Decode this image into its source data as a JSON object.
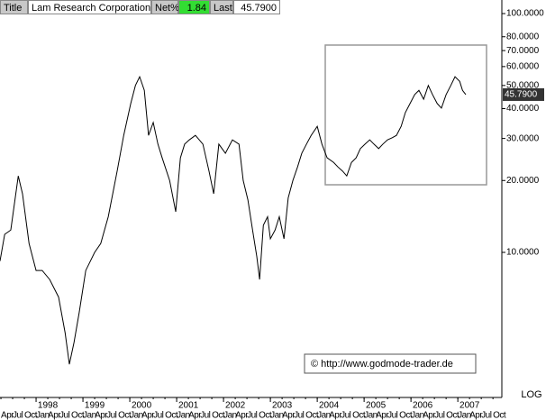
{
  "header": {
    "title_label": "Title",
    "name": "Lam Research Corporation",
    "net_label": "Net%",
    "net": 1.84,
    "last_label": "Last",
    "last": {
      "value": 45.79,
      "label": "45.7900"
    }
  },
  "chart_data": {
    "type": "line",
    "log_scale": true,
    "grid": false,
    "color": "#000000",
    "x": [
      1997.23,
      1997.33,
      1997.46,
      1997.62,
      1997.71,
      1997.85,
      1998.0,
      1998.13,
      1998.29,
      1998.48,
      1998.62,
      1998.71,
      1998.81,
      1998.92,
      1999.06,
      1999.25,
      1999.38,
      1999.54,
      1999.73,
      1999.87,
      2000.02,
      2000.12,
      2000.21,
      2000.31,
      2000.4,
      2000.5,
      2000.6,
      2000.69,
      2000.85,
      2000.98,
      2001.08,
      2001.17,
      2001.27,
      2001.4,
      2001.56,
      2001.69,
      2001.79,
      2001.9,
      2002.04,
      2002.19,
      2002.33,
      2002.42,
      2002.52,
      2002.62,
      2002.71,
      2002.77,
      2002.85,
      2002.94,
      2003.0,
      2003.1,
      2003.19,
      2003.29,
      2003.38,
      2003.48,
      2003.58,
      2003.67,
      2003.77,
      2003.87,
      2004.0,
      2004.1,
      2004.21,
      2004.35,
      2004.44,
      2004.54,
      2004.63,
      2004.73,
      2004.83,
      2004.92,
      2005.02,
      2005.12,
      2005.21,
      2005.31,
      2005.4,
      2005.5,
      2005.6,
      2005.69,
      2005.79,
      2005.88,
      2005.98,
      2006.08,
      2006.17,
      2006.27,
      2006.37,
      2006.46,
      2006.56,
      2006.65,
      2006.75,
      2006.85,
      2006.94,
      2007.04,
      2007.1,
      2007.17
    ],
    "values": [
      9.2,
      11.9,
      12.4,
      20.9,
      17.6,
      10.9,
      8.4,
      8.4,
      7.7,
      6.5,
      4.6,
      3.4,
      4.2,
      5.6,
      8.4,
      10.0,
      10.9,
      14.1,
      21.9,
      30.9,
      42.0,
      50.0,
      54.4,
      47.7,
      30.9,
      35.0,
      28.4,
      24.9,
      20.0,
      14.8,
      24.9,
      28.4,
      29.6,
      30.9,
      28.4,
      21.9,
      17.6,
      28.4,
      26.0,
      29.6,
      28.4,
      20.0,
      16.6,
      12.4,
      9.6,
      7.7,
      13.0,
      14.1,
      11.4,
      12.4,
      14.1,
      11.4,
      16.9,
      20.0,
      22.8,
      26.0,
      28.4,
      30.9,
      33.7,
      28.4,
      24.9,
      23.8,
      22.8,
      21.9,
      20.9,
      23.8,
      24.9,
      27.2,
      28.4,
      29.6,
      28.4,
      27.2,
      28.4,
      29.6,
      30.2,
      30.9,
      33.7,
      38.5,
      42.0,
      45.8,
      47.7,
      43.8,
      50.0,
      45.8,
      42.0,
      40.2,
      45.8,
      50.0,
      54.4,
      52.0,
      47.7,
      45.79
    ],
    "xlim": [
      1997.23,
      2007.92
    ],
    "xticks": [
      1998,
      1999,
      2000,
      2001,
      2002,
      2003,
      2004,
      2005,
      2006,
      2007
    ],
    "month_ticks": [
      {
        "value": 1997.25,
        "label": "Apr"
      },
      {
        "value": 1997.5,
        "label": "Jul"
      },
      {
        "value": 1997.75,
        "label": "Oct"
      },
      {
        "value": 1998,
        "label": "Jan"
      },
      {
        "value": 1998.25,
        "label": "Apr"
      },
      {
        "value": 1998.5,
        "label": "Jul"
      },
      {
        "value": 1998.75,
        "label": "Oct"
      },
      {
        "value": 1999,
        "label": "Jan"
      },
      {
        "value": 1999.25,
        "label": "Apr"
      },
      {
        "value": 1999.5,
        "label": "Jul"
      },
      {
        "value": 1999.75,
        "label": "Oct"
      },
      {
        "value": 2000,
        "label": "Jan"
      },
      {
        "value": 2000.25,
        "label": "Apr"
      },
      {
        "value": 2000.5,
        "label": "Jul"
      },
      {
        "value": 2000.75,
        "label": "Oct"
      },
      {
        "value": 2001,
        "label": "Jan"
      },
      {
        "value": 2001.25,
        "label": "Apr"
      },
      {
        "value": 2001.5,
        "label": "Jul"
      },
      {
        "value": 2001.75,
        "label": "Oct"
      },
      {
        "value": 2002,
        "label": "Jan"
      },
      {
        "value": 2002.25,
        "label": "Apr"
      },
      {
        "value": 2002.5,
        "label": "Jul"
      },
      {
        "value": 2002.75,
        "label": "Oct"
      },
      {
        "value": 2003,
        "label": "Jan"
      },
      {
        "value": 2003.25,
        "label": "Apr"
      },
      {
        "value": 2003.5,
        "label": "Jul"
      },
      {
        "value": 2003.75,
        "label": "Oct"
      },
      {
        "value": 2004,
        "label": "Jan"
      },
      {
        "value": 2004.25,
        "label": "Apr"
      },
      {
        "value": 2004.5,
        "label": "Jul"
      },
      {
        "value": 2004.75,
        "label": "Oct"
      },
      {
        "value": 2005,
        "label": "Jan"
      },
      {
        "value": 2005.25,
        "label": "Apr"
      },
      {
        "value": 2005.5,
        "label": "Jul"
      },
      {
        "value": 2005.75,
        "label": "Oct"
      },
      {
        "value": 2006,
        "label": "Jan"
      },
      {
        "value": 2006.25,
        "label": "Apr"
      },
      {
        "value": 2006.5,
        "label": "Jul"
      },
      {
        "value": 2006.75,
        "label": "Oct"
      },
      {
        "value": 2007,
        "label": "Jan"
      },
      {
        "value": 2007.25,
        "label": "Apr"
      },
      {
        "value": 2007.5,
        "label": "Jul"
      },
      {
        "value": 2007.75,
        "label": "Oct"
      }
    ],
    "ylim": [
      2.49,
      114
    ],
    "yticks": [
      {
        "value": 10,
        "label": "10.0000"
      },
      {
        "value": 20,
        "label": "20.0000"
      },
      {
        "value": 30,
        "label": "30.0000"
      },
      {
        "value": 40,
        "label": "40.0000"
      },
      {
        "value": 50,
        "label": "50.0000"
      },
      {
        "value": 60,
        "label": "60.0000"
      },
      {
        "value": 70,
        "label": "70.0000"
      },
      {
        "value": 80,
        "label": "80.0000"
      },
      {
        "value": 100,
        "label": "100.0000"
      }
    ],
    "scale_label": "LOG",
    "annotation": "© http://www.godmode-trader.de"
  }
}
